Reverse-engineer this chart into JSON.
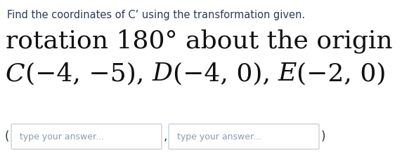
{
  "background_color": "#ffffff",
  "instruction_text": "Find the coordinates of C’ using the transformation given.",
  "instruction_fontsize": 10.5,
  "instruction_color": "#2d3b55",
  "main_line1": "rotation 180° about the origin",
  "main_line2_parts": [
    {
      "text": "C",
      "italic": true
    },
    {
      "text": "(−4, −5), ",
      "italic": false
    },
    {
      "text": "D",
      "italic": true
    },
    {
      "text": "(−4, 0), ",
      "italic": false
    },
    {
      "text": "E",
      "italic": true
    },
    {
      "text": "(−2, 0)",
      "italic": false
    }
  ],
  "main_fontsize": 26,
  "main_color": "#111111",
  "placeholder_text": "type your answer...",
  "placeholder_color": "#8a9bb0",
  "placeholder_fontsize": 9,
  "box_edge_color": "#c8d0da",
  "box_fill_color": "#ffffff",
  "paren_open": "(",
  "paren_close": ")",
  "comma_sep": ",",
  "paren_color": "#333333",
  "paren_fontsize": 12
}
